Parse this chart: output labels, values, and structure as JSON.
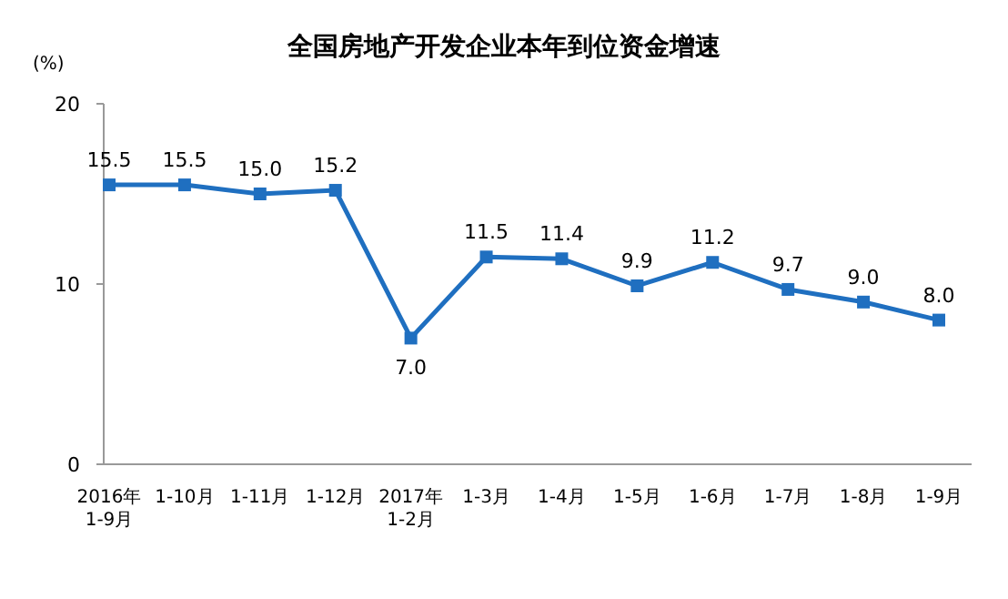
{
  "chart_data": {
    "type": "line",
    "title": "全国房地产开发企业本年到位资金增速",
    "ylabel": "(%)",
    "categories": [
      "2016年\n1-9月",
      "1-10月",
      "1-11月",
      "1-12月",
      "2017年\n1-2月",
      "1-3月",
      "1-4月",
      "1-5月",
      "1-6月",
      "1-7月",
      "1-8月",
      "1-9月"
    ],
    "values": [
      15.5,
      15.5,
      15.0,
      15.2,
      7.0,
      11.5,
      11.4,
      9.9,
      11.2,
      9.7,
      9.0,
      8.0
    ],
    "value_labels": [
      "15.5",
      "15.5",
      "15.0",
      "15.2",
      "7.0",
      "11.5",
      "11.4",
      "9.9",
      "11.2",
      "9.7",
      "9.0",
      "8.0"
    ],
    "color": "#1f6fc0",
    "marker": "square",
    "ylim": [
      0,
      20
    ],
    "yticks": [
      0,
      10,
      20
    ],
    "grid": false
  }
}
